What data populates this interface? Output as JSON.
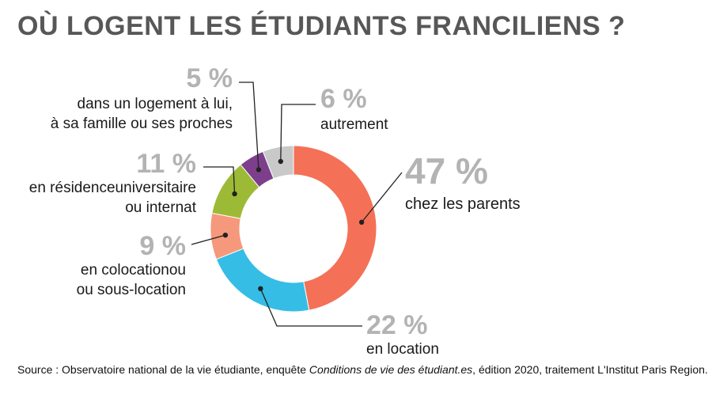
{
  "title": "OÙ LOGENT LES ÉTUDIANTS FRANCILIENS ?",
  "source": {
    "prefix": "Source : Observatoire national de la vie étudiante, enquête ",
    "italic": "Conditions de vie des étudiant.es",
    "suffix": ", édition 2020, traitement L'Institut Paris Region."
  },
  "chart_data": {
    "type": "pie",
    "subtype": "donut",
    "slices": [
      {
        "value": 47,
        "pct_label": "47 %",
        "label_lines": [
          "chez les parents"
        ],
        "color": "#F47157"
      },
      {
        "value": 22,
        "pct_label": "22 %",
        "label_lines": [
          "en location"
        ],
        "color": "#35BDE6"
      },
      {
        "value": 9,
        "pct_label": "9 %",
        "label_lines": [
          "en colocationou",
          "ou sous-location"
        ],
        "color": "#F6987B"
      },
      {
        "value": 11,
        "pct_label": "11 %",
        "label_lines": [
          "en résidenceuniversitaire",
          "ou internat"
        ],
        "color": "#9DBA37"
      },
      {
        "value": 5,
        "pct_label": "5 %",
        "label_lines": [
          "dans un logement à lui,",
          "à sa famille ou ses proches"
        ],
        "color": "#7D3F8C"
      },
      {
        "value": 6,
        "pct_label": "6 %",
        "label_lines": [
          "autrement"
        ],
        "color": "#C9C9C9"
      }
    ]
  }
}
